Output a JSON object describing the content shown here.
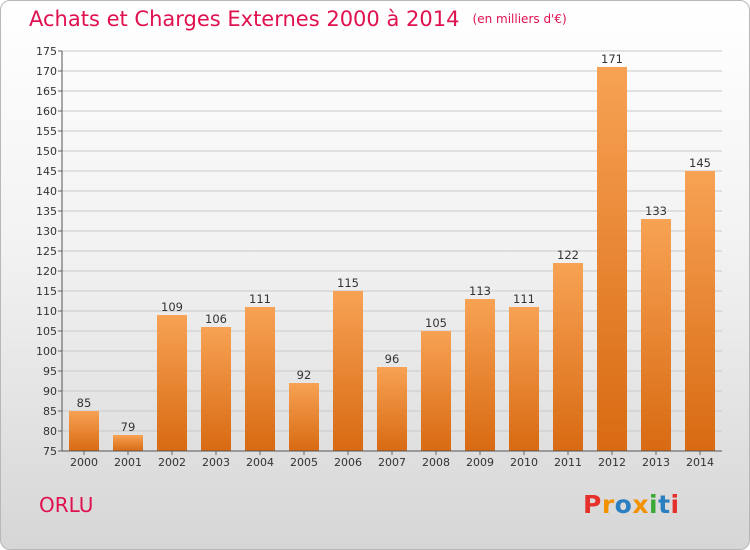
{
  "header": {
    "title": "Achats et Charges Externes 2000 à 2014",
    "unit": "(en milliers d'€)"
  },
  "footer": {
    "commune": "ORLU",
    "logo": "Proxiti",
    "logo_colors": [
      "#e5312b",
      "#f39200",
      "#2a7fc1",
      "#f39200",
      "#3aa935",
      "#2a7fc1",
      "#e5312b"
    ]
  },
  "colors": {
    "title": "#e0114f",
    "bar_top": "#f7a254",
    "bar_bottom": "#d86a12"
  },
  "chart_data": {
    "type": "bar",
    "title": "Achats et Charges Externes 2000 à 2014",
    "subtitle": "(en milliers d'€)",
    "categories": [
      "2000",
      "2001",
      "2002",
      "2003",
      "2004",
      "2005",
      "2006",
      "2007",
      "2008",
      "2009",
      "2010",
      "2011",
      "2012",
      "2013",
      "2014"
    ],
    "values": [
      85,
      79,
      109,
      106,
      111,
      92,
      115,
      96,
      105,
      113,
      111,
      122,
      171,
      133,
      145
    ],
    "ylim": [
      75,
      175
    ],
    "ytick_step": 5,
    "grid": true
  }
}
